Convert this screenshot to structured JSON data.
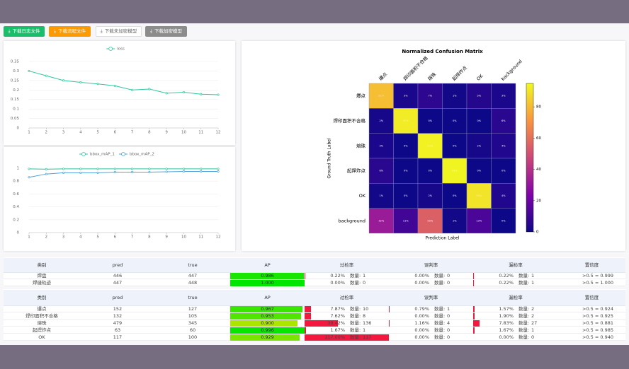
{
  "buttons": [
    "下载日志文件",
    "下载流程文件",
    "下载未加密模型",
    "下载加密模型"
  ],
  "chart_data": [
    {
      "type": "line",
      "series": [
        {
          "name": "loss",
          "color": "#2ec7a0",
          "values": [
            0.3,
            0.275,
            0.25,
            0.24,
            0.232,
            0.222,
            0.2,
            0.205,
            0.183,
            0.188,
            0.178,
            0.175
          ]
        }
      ],
      "x": [
        1,
        2,
        3,
        4,
        5,
        6,
        7,
        8,
        9,
        10,
        11,
        12
      ],
      "xlim": [
        1,
        12
      ],
      "xticks": [
        1,
        2,
        3,
        4,
        5,
        6,
        7,
        8,
        9,
        10,
        11,
        12
      ],
      "ylim": [
        0,
        0.35
      ],
      "yticks": [
        0,
        0.05,
        0.1,
        0.15,
        0.2,
        0.25,
        0.3,
        0.35
      ],
      "grid": true
    },
    {
      "type": "line",
      "series": [
        {
          "name": "bbox_mAP_1",
          "color": "#2ec7a0",
          "values": [
            0.99,
            0.985,
            0.99,
            0.99,
            0.99,
            0.99,
            0.99,
            0.99,
            0.99,
            0.99,
            0.99,
            0.99
          ]
        },
        {
          "name": "bbox_mAP_2",
          "color": "#4aa3df",
          "values": [
            0.86,
            0.91,
            0.93,
            0.93,
            0.93,
            0.94,
            0.94,
            0.94,
            0.945,
            0.95,
            0.95,
            0.95
          ]
        }
      ],
      "x": [
        1,
        2,
        3,
        4,
        5,
        6,
        7,
        8,
        9,
        10,
        11,
        12
      ],
      "xlim": [
        1,
        12
      ],
      "xticks": [
        1,
        2,
        3,
        4,
        5,
        6,
        7,
        8,
        9,
        10,
        11,
        12
      ],
      "ylim": [
        0,
        1
      ],
      "yticks": [
        0,
        0.2,
        0.4,
        0.6,
        0.8,
        1
      ],
      "grid": true
    },
    {
      "type": "heatmap",
      "title": "Normalized Confusion Matrix",
      "x_label": "Prediction Label",
      "y_label": "Ground Truth Label",
      "x_categories": [
        "爆点",
        "焊印面积不合格",
        "熔珠",
        "起焊炸点",
        "OK",
        "background"
      ],
      "y_categories": [
        "爆点",
        "焊印面积不合格",
        "熔珠",
        "起焊炸点",
        "OK",
        "background"
      ],
      "values": [
        [
          81,
          3,
          7,
          1,
          5,
          3
        ],
        [
          2,
          92,
          0,
          0,
          0,
          6
        ],
        [
          3,
          0,
          93,
          0,
          2,
          4
        ],
        [
          6,
          0,
          0,
          94,
          0,
          0
        ],
        [
          1,
          0,
          2,
          0,
          90,
          4
        ],
        [
          32,
          11,
          55,
          1,
          13,
          0
        ]
      ],
      "value_labels": [
        [
          "81%",
          "3%",
          "7%",
          "1%",
          "5%",
          "3%"
        ],
        [
          "2%",
          "92%",
          "0%",
          "0%",
          "0%",
          "6%"
        ],
        [
          "3%",
          "0%",
          "93%",
          "0%",
          "2%",
          "4%"
        ],
        [
          "6%",
          "0%",
          "0%",
          "94%",
          "0%",
          "0%"
        ],
        [
          "1%",
          "0%",
          "2%",
          "0%",
          "90%",
          "4%"
        ],
        [
          "32%",
          "11%",
          "55%",
          "1%",
          "13%",
          "0%"
        ]
      ],
      "zlim": [
        0,
        95
      ],
      "zticks": [
        0,
        20,
        40,
        60,
        80
      ],
      "colormap": "plasma"
    }
  ],
  "count_label": "数量:",
  "tables": [
    {
      "columns": [
        "类别",
        "pred",
        "true",
        "AP",
        "过检率",
        "误判率",
        "漏检率",
        "置信度"
      ],
      "rows": [
        {
          "name": "焊盘",
          "pred": 446,
          "true": 447,
          "ap": {
            "value": 0.986,
            "label": "0.986"
          },
          "over": {
            "value": 0.22,
            "label": "0.22%"
          },
          "over_count": 1,
          "wrong": {
            "value": 0,
            "label": "0.00%"
          },
          "wrong_count": 0,
          "miss": {
            "value": 0.22,
            "label": "0.22%"
          },
          "miss_count": 1,
          "conf": ">0.5 = 0.999"
        },
        {
          "name": "焊缝轨迹",
          "pred": 447,
          "true": 448,
          "ap": {
            "value": 1,
            "label": "1.000"
          },
          "over": {
            "value": 0,
            "label": "0.00%"
          },
          "over_count": 0,
          "wrong": {
            "value": 0,
            "label": "0.00%"
          },
          "wrong_count": 0,
          "miss": {
            "value": 0.22,
            "label": "0.22%"
          },
          "miss_count": 1,
          "conf": ">0.5 = 1.000"
        }
      ]
    },
    {
      "columns": [
        "类别",
        "pred",
        "true",
        "AP",
        "过检率",
        "误判率",
        "漏检率",
        "置信度"
      ],
      "rows": [
        {
          "name": "爆点",
          "pred": 152,
          "true": 127,
          "ap": {
            "value": 0.967,
            "label": "0.967"
          },
          "over": {
            "value": 7.87,
            "label": "7.87%"
          },
          "over_count": 10,
          "wrong": {
            "value": 0.79,
            "label": "0.79%"
          },
          "wrong_count": 1,
          "miss": {
            "value": 1.57,
            "label": "1.57%"
          },
          "miss_count": 2,
          "conf": ">0.5 = 0.924"
        },
        {
          "name": "焊印面积不合格",
          "pred": 132,
          "true": 105,
          "ap": {
            "value": 0.953,
            "label": "0.953"
          },
          "over": {
            "value": 7.62,
            "label": "7.62%"
          },
          "over_count": 8,
          "wrong": {
            "value": 0,
            "label": "0.00%"
          },
          "wrong_count": 0,
          "miss": {
            "value": 1.9,
            "label": "1.90%"
          },
          "miss_count": 2,
          "conf": ">0.5 = 0.925"
        },
        {
          "name": "熔珠",
          "pred": 479,
          "true": 345,
          "ap": {
            "value": 0.9,
            "label": "0.900"
          },
          "over": {
            "value": 39.42,
            "label": "39.42%"
          },
          "over_count": 136,
          "wrong": {
            "value": 1.16,
            "label": "1.16%"
          },
          "wrong_count": 4,
          "miss": {
            "value": 7.83,
            "label": "7.83%"
          },
          "miss_count": 27,
          "conf": ">0.5 = 0.881"
        },
        {
          "name": "起焊炸点",
          "pred": 63,
          "true": 60,
          "ap": {
            "value": 0.996,
            "label": "0.996"
          },
          "over": {
            "value": 1.67,
            "label": "1.67%"
          },
          "over_count": 1,
          "wrong": {
            "value": 0,
            "label": "0.00%"
          },
          "wrong_count": 0,
          "miss": {
            "value": 1.67,
            "label": "1.67%"
          },
          "miss_count": 1,
          "conf": ">0.5 = 0.985"
        },
        {
          "name": "OK",
          "pred": 117,
          "true": 100,
          "ap": {
            "value": 0.929,
            "label": "0.929"
          },
          "over": {
            "value": 117,
            "label": "117.00%"
          },
          "over_count": 117,
          "wrong": {
            "value": 0,
            "label": "0.00%"
          },
          "wrong_count": 0,
          "miss": {
            "value": 0,
            "label": "0.00%"
          },
          "miss_count": 0,
          "conf": ">0.5 = 0.940"
        }
      ]
    }
  ]
}
